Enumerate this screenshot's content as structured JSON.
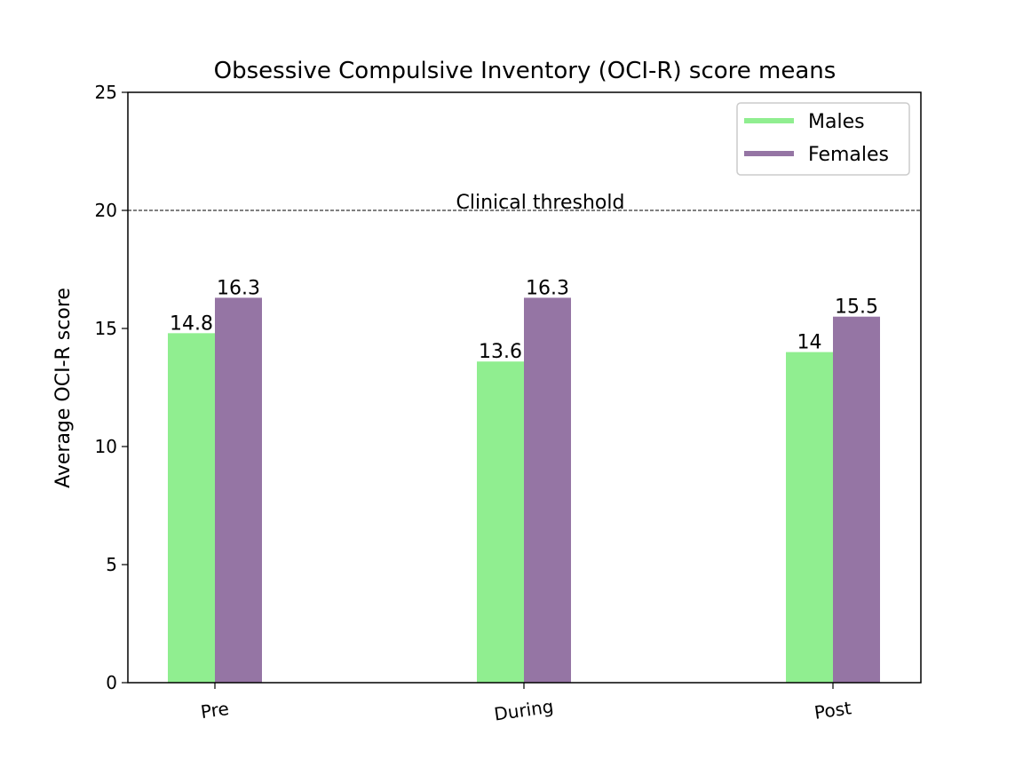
{
  "chart_data": {
    "type": "bar",
    "title": "Obsessive Compulsive Inventory (OCI-R) score means",
    "ylabel": "Average OCI-R score",
    "xlabel": "",
    "categories": [
      "Pre",
      "During",
      "Post"
    ],
    "ylim": [
      0,
      25
    ],
    "yticks": [
      0,
      5,
      10,
      15,
      20,
      25
    ],
    "series": [
      {
        "name": "Males",
        "values": [
          14.8,
          13.6,
          14
        ],
        "labels": [
          "14.8",
          "13.6",
          "14"
        ],
        "color": "#90ee90"
      },
      {
        "name": "Females",
        "values": [
          16.3,
          16.3,
          15.5
        ],
        "labels": [
          "16.3",
          "16.3",
          "15.5"
        ],
        "color": "#9575a4"
      }
    ],
    "threshold": {
      "value": 20,
      "label": "Clinical threshold",
      "style": "dashed",
      "color": "#000000"
    },
    "legend": {
      "position": "top-right"
    },
    "grid": false
  }
}
